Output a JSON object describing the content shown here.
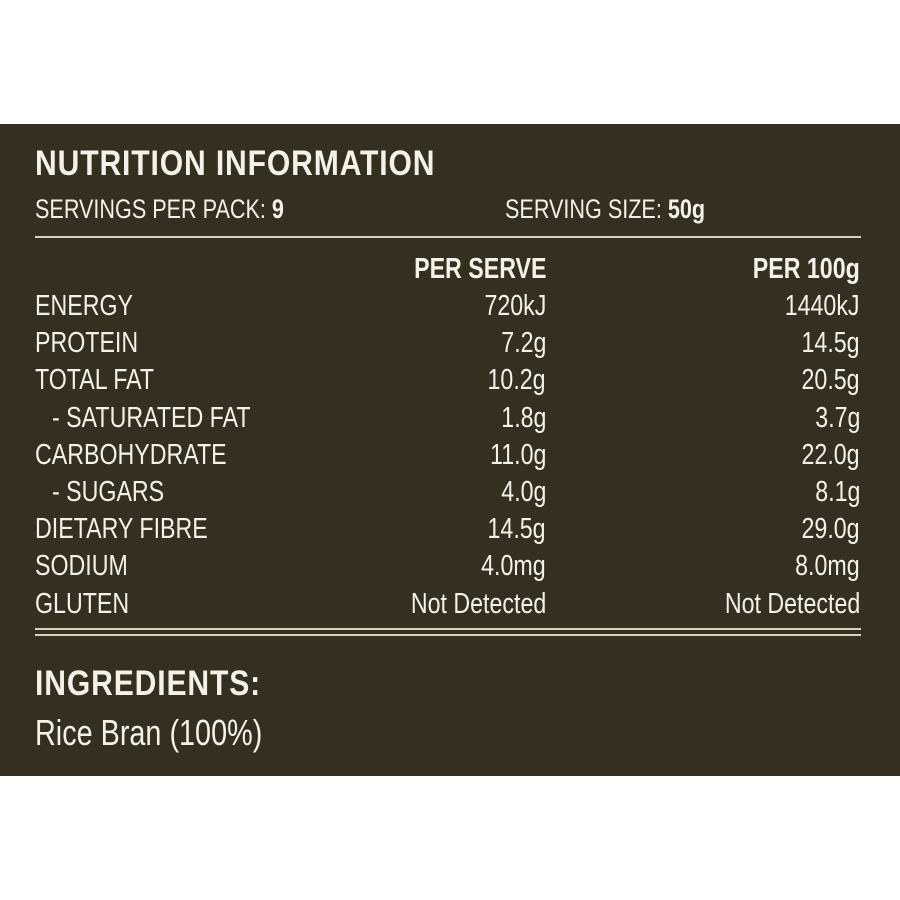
{
  "title": "NUTRITION INFORMATION",
  "servings_per_pack": {
    "label": "SERVINGS PER PACK:",
    "value": "9"
  },
  "serving_size": {
    "label": "SERVING SIZE:",
    "value": "50g"
  },
  "columns": {
    "per_serve": "PER SERVE",
    "per_100g": "PER 100g"
  },
  "rows": [
    {
      "label": "ENERGY",
      "per_serve": "720kJ",
      "per_100g": "1440kJ",
      "indent": false
    },
    {
      "label": "PROTEIN",
      "per_serve": "7.2g",
      "per_100g": "14.5g",
      "indent": false
    },
    {
      "label": "TOTAL FAT",
      "per_serve": "10.2g",
      "per_100g": "20.5g",
      "indent": false
    },
    {
      "label": "- SATURATED FAT",
      "per_serve": "1.8g",
      "per_100g": "3.7g",
      "indent": true
    },
    {
      "label": "CARBOHYDRATE",
      "per_serve": "11.0g",
      "per_100g": "22.0g",
      "indent": false
    },
    {
      "label": "- SUGARS",
      "per_serve": "4.0g",
      "per_100g": "8.1g",
      "indent": true
    },
    {
      "label": "DIETARY FIBRE",
      "per_serve": "14.5g",
      "per_100g": "29.0g",
      "indent": false
    },
    {
      "label": "SODIUM",
      "per_serve": "4.0mg",
      "per_100g": "8.0mg",
      "indent": false
    },
    {
      "label": "GLUTEN",
      "per_serve": "Not Detected",
      "per_100g": "Not Detected",
      "indent": false
    }
  ],
  "ingredients": {
    "title": "INGREDIENTS:",
    "text": "Rice Bran (100%)"
  },
  "colors": {
    "panel_background": "#352f22",
    "text": "#f4f1e8",
    "rule": "#d8d2c0"
  }
}
